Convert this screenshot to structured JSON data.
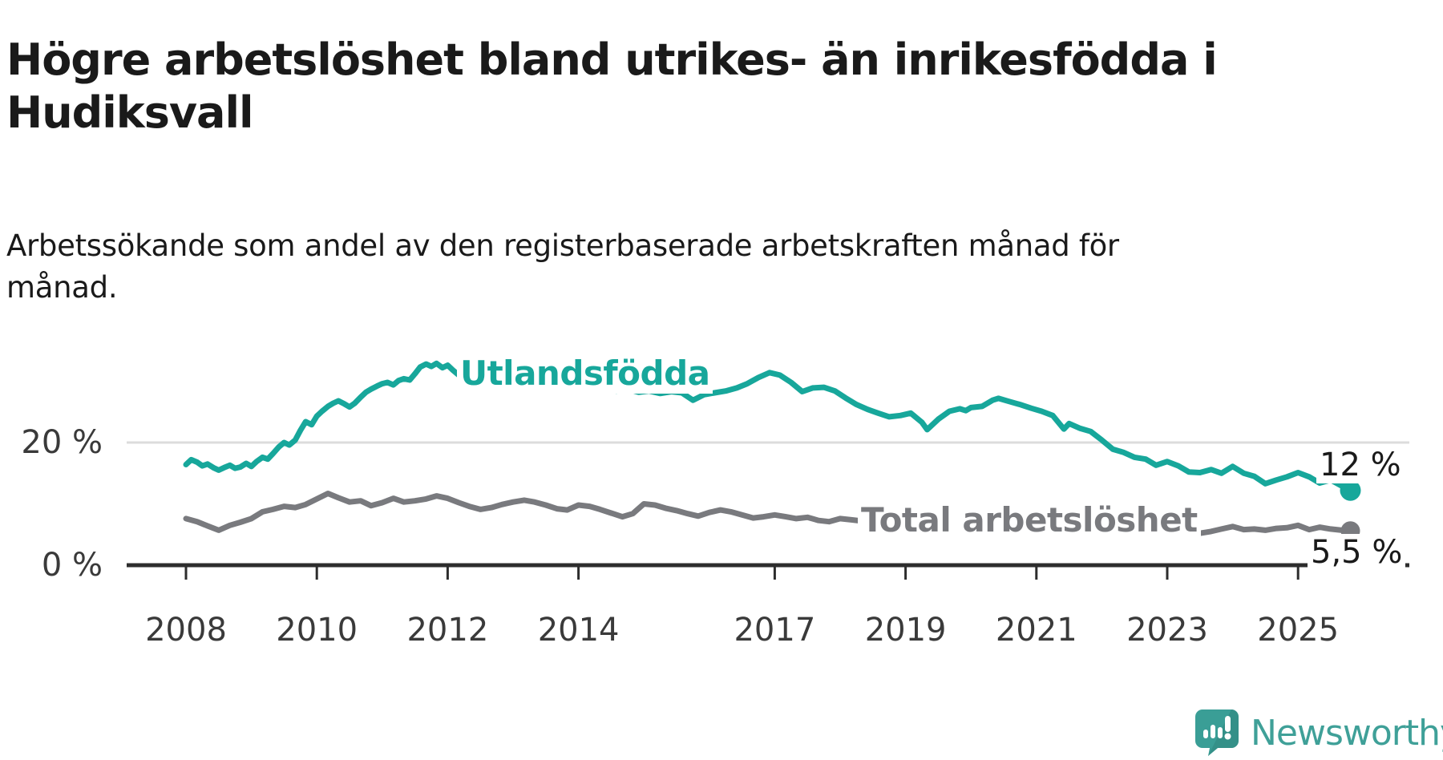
{
  "header": {
    "title": "Högre arbetslöshet bland utrikes- än inrikesfödda i\nHudiksvall",
    "subtitle": "Arbetssökande som andel av den registerbaserade arbetskraften månad för månad."
  },
  "footer": {
    "brand": "Newsworthy"
  },
  "colors": {
    "accent_teal": "#17a79b",
    "series_gray": "#797a7e",
    "gridline": "#dcdcdc",
    "axis": "#2d2d2d",
    "text": "#1a1a1a"
  },
  "chart_data": {
    "type": "line",
    "unit": "%",
    "grid": "single horizontal gridline at 20 %",
    "legend_position": "inline labels on lines",
    "x_axis": {
      "range": [
        2007.9,
        2026.7
      ],
      "ticks": [
        2008,
        2010,
        2012,
        2014,
        2017,
        2019,
        2021,
        2023,
        2025
      ],
      "tick_labels": [
        "2008",
        "2010",
        "2012",
        "2014",
        "2017",
        "2019",
        "2021",
        "2023",
        "2025"
      ]
    },
    "y_axis": {
      "range": [
        0,
        42
      ],
      "ticks": [
        0,
        20
      ],
      "tick_labels": [
        "0 %",
        "20 %"
      ]
    },
    "series": [
      {
        "name": "Utlandsfödda",
        "color": "#17a79b",
        "end_label": "12 %",
        "end_value": 12,
        "points": [
          [
            2008.0,
            16.4
          ],
          [
            2008.08,
            17.2
          ],
          [
            2008.17,
            16.8
          ],
          [
            2008.25,
            16.2
          ],
          [
            2008.33,
            16.5
          ],
          [
            2008.42,
            15.9
          ],
          [
            2008.5,
            15.5
          ],
          [
            2008.58,
            15.9
          ],
          [
            2008.67,
            16.3
          ],
          [
            2008.75,
            15.8
          ],
          [
            2008.83,
            16.0
          ],
          [
            2008.92,
            16.6
          ],
          [
            2009.0,
            16.1
          ],
          [
            2009.08,
            16.9
          ],
          [
            2009.17,
            17.6
          ],
          [
            2009.25,
            17.3
          ],
          [
            2009.33,
            18.2
          ],
          [
            2009.42,
            19.3
          ],
          [
            2009.5,
            20.0
          ],
          [
            2009.58,
            19.6
          ],
          [
            2009.67,
            20.4
          ],
          [
            2009.75,
            22.0
          ],
          [
            2009.83,
            23.4
          ],
          [
            2009.92,
            22.9
          ],
          [
            2010.0,
            24.3
          ],
          [
            2010.08,
            25.1
          ],
          [
            2010.17,
            25.9
          ],
          [
            2010.25,
            26.4
          ],
          [
            2010.33,
            26.8
          ],
          [
            2010.42,
            26.3
          ],
          [
            2010.5,
            25.8
          ],
          [
            2010.58,
            26.4
          ],
          [
            2010.67,
            27.4
          ],
          [
            2010.75,
            28.2
          ],
          [
            2010.83,
            28.7
          ],
          [
            2010.92,
            29.2
          ],
          [
            2011.0,
            29.6
          ],
          [
            2011.08,
            29.8
          ],
          [
            2011.17,
            29.4
          ],
          [
            2011.25,
            30.1
          ],
          [
            2011.33,
            30.4
          ],
          [
            2011.42,
            30.2
          ],
          [
            2011.5,
            31.2
          ],
          [
            2011.58,
            32.3
          ],
          [
            2011.67,
            32.8
          ],
          [
            2011.75,
            32.4
          ],
          [
            2011.83,
            32.9
          ],
          [
            2011.92,
            32.2
          ],
          [
            2012.0,
            32.6
          ],
          [
            2012.08,
            31.8
          ],
          [
            2012.17,
            31.0
          ],
          [
            2012.25,
            30.6
          ],
          [
            2012.42,
            31.1
          ],
          [
            2012.58,
            30.6
          ],
          [
            2012.75,
            30.9
          ],
          [
            2012.92,
            30.3
          ],
          [
            2013.08,
            30.6
          ],
          [
            2013.25,
            30.0
          ],
          [
            2013.42,
            29.6
          ],
          [
            2013.58,
            29.9
          ],
          [
            2013.75,
            29.3
          ],
          [
            2013.92,
            29.5
          ],
          [
            2014.08,
            28.9
          ],
          [
            2014.25,
            29.1
          ],
          [
            2014.42,
            28.6
          ],
          [
            2014.58,
            28.4
          ],
          [
            2014.75,
            28.7
          ],
          [
            2014.92,
            28.2
          ],
          [
            2015.08,
            28.4
          ],
          [
            2015.25,
            28.0
          ],
          [
            2015.42,
            28.3
          ],
          [
            2015.58,
            28.1
          ],
          [
            2015.75,
            26.9
          ],
          [
            2015.92,
            27.8
          ],
          [
            2016.08,
            28.1
          ],
          [
            2016.25,
            28.4
          ],
          [
            2016.42,
            28.9
          ],
          [
            2016.58,
            29.6
          ],
          [
            2016.75,
            30.6
          ],
          [
            2016.92,
            31.4
          ],
          [
            2017.08,
            31.0
          ],
          [
            2017.25,
            29.8
          ],
          [
            2017.42,
            28.3
          ],
          [
            2017.58,
            28.9
          ],
          [
            2017.75,
            29.0
          ],
          [
            2017.92,
            28.4
          ],
          [
            2018.08,
            27.3
          ],
          [
            2018.25,
            26.2
          ],
          [
            2018.42,
            25.4
          ],
          [
            2018.58,
            24.8
          ],
          [
            2018.75,
            24.2
          ],
          [
            2018.92,
            24.4
          ],
          [
            2019.08,
            24.8
          ],
          [
            2019.25,
            23.3
          ],
          [
            2019.33,
            22.1
          ],
          [
            2019.5,
            23.8
          ],
          [
            2019.67,
            25.1
          ],
          [
            2019.83,
            25.5
          ],
          [
            2019.92,
            25.2
          ],
          [
            2020.0,
            25.7
          ],
          [
            2020.17,
            25.9
          ],
          [
            2020.33,
            26.9
          ],
          [
            2020.42,
            27.2
          ],
          [
            2020.58,
            26.7
          ],
          [
            2020.75,
            26.2
          ],
          [
            2020.92,
            25.6
          ],
          [
            2021.08,
            25.1
          ],
          [
            2021.25,
            24.4
          ],
          [
            2021.42,
            22.2
          ],
          [
            2021.5,
            23.1
          ],
          [
            2021.67,
            22.3
          ],
          [
            2021.83,
            21.8
          ],
          [
            2022.0,
            20.4
          ],
          [
            2022.17,
            18.9
          ],
          [
            2022.33,
            18.4
          ],
          [
            2022.5,
            17.6
          ],
          [
            2022.67,
            17.3
          ],
          [
            2022.83,
            16.3
          ],
          [
            2023.0,
            16.9
          ],
          [
            2023.17,
            16.2
          ],
          [
            2023.33,
            15.2
          ],
          [
            2023.5,
            15.1
          ],
          [
            2023.67,
            15.6
          ],
          [
            2023.83,
            15.0
          ],
          [
            2024.0,
            16.1
          ],
          [
            2024.17,
            15.0
          ],
          [
            2024.33,
            14.5
          ],
          [
            2024.5,
            13.3
          ],
          [
            2024.67,
            13.9
          ],
          [
            2024.83,
            14.4
          ],
          [
            2025.0,
            15.1
          ],
          [
            2025.17,
            14.4
          ],
          [
            2025.33,
            13.4
          ],
          [
            2025.5,
            13.9
          ],
          [
            2025.67,
            12.9
          ],
          [
            2025.8,
            12.2
          ]
        ]
      },
      {
        "name": "Total arbetslöshet",
        "color": "#797a7e",
        "end_label": "5,5 %",
        "end_value": 5.5,
        "points": [
          [
            2008.0,
            7.6
          ],
          [
            2008.17,
            7.1
          ],
          [
            2008.33,
            6.4
          ],
          [
            2008.5,
            5.7
          ],
          [
            2008.67,
            6.5
          ],
          [
            2008.83,
            7.0
          ],
          [
            2009.0,
            7.6
          ],
          [
            2009.17,
            8.7
          ],
          [
            2009.33,
            9.1
          ],
          [
            2009.5,
            9.6
          ],
          [
            2009.67,
            9.4
          ],
          [
            2009.83,
            9.9
          ],
          [
            2010.0,
            10.8
          ],
          [
            2010.17,
            11.7
          ],
          [
            2010.33,
            11.0
          ],
          [
            2010.5,
            10.3
          ],
          [
            2010.67,
            10.5
          ],
          [
            2010.83,
            9.7
          ],
          [
            2011.0,
            10.2
          ],
          [
            2011.17,
            10.9
          ],
          [
            2011.33,
            10.3
          ],
          [
            2011.5,
            10.5
          ],
          [
            2011.67,
            10.8
          ],
          [
            2011.83,
            11.3
          ],
          [
            2012.0,
            10.9
          ],
          [
            2012.17,
            10.2
          ],
          [
            2012.33,
            9.6
          ],
          [
            2012.5,
            9.1
          ],
          [
            2012.67,
            9.4
          ],
          [
            2012.83,
            9.9
          ],
          [
            2013.0,
            10.3
          ],
          [
            2013.17,
            10.6
          ],
          [
            2013.33,
            10.3
          ],
          [
            2013.5,
            9.8
          ],
          [
            2013.67,
            9.2
          ],
          [
            2013.83,
            9.0
          ],
          [
            2014.0,
            9.8
          ],
          [
            2014.17,
            9.6
          ],
          [
            2014.33,
            9.1
          ],
          [
            2014.5,
            8.5
          ],
          [
            2014.67,
            7.9
          ],
          [
            2014.83,
            8.4
          ],
          [
            2015.0,
            10.0
          ],
          [
            2015.17,
            9.8
          ],
          [
            2015.33,
            9.3
          ],
          [
            2015.5,
            8.9
          ],
          [
            2015.67,
            8.4
          ],
          [
            2015.83,
            8.0
          ],
          [
            2016.0,
            8.6
          ],
          [
            2016.17,
            9.0
          ],
          [
            2016.33,
            8.7
          ],
          [
            2016.5,
            8.2
          ],
          [
            2016.67,
            7.7
          ],
          [
            2016.83,
            7.9
          ],
          [
            2017.0,
            8.2
          ],
          [
            2017.17,
            7.9
          ],
          [
            2017.33,
            7.6
          ],
          [
            2017.5,
            7.8
          ],
          [
            2017.67,
            7.3
          ],
          [
            2017.83,
            7.1
          ],
          [
            2018.0,
            7.6
          ],
          [
            2018.17,
            7.4
          ],
          [
            2018.33,
            7.2
          ],
          [
            2018.58,
            7.0
          ],
          [
            2018.83,
            6.9
          ],
          [
            2019.08,
            7.2
          ],
          [
            2019.33,
            6.9
          ],
          [
            2019.58,
            7.1
          ],
          [
            2019.83,
            7.4
          ],
          [
            2020.08,
            7.9
          ],
          [
            2020.33,
            8.3
          ],
          [
            2020.58,
            8.1
          ],
          [
            2020.83,
            7.8
          ],
          [
            2021.08,
            7.5
          ],
          [
            2021.33,
            7.2
          ],
          [
            2021.58,
            6.9
          ],
          [
            2021.83,
            6.7
          ],
          [
            2022.08,
            6.6
          ],
          [
            2022.33,
            6.5
          ],
          [
            2022.5,
            6.2
          ],
          [
            2022.67,
            6.3
          ],
          [
            2022.83,
            5.9
          ],
          [
            2023.0,
            6.1
          ],
          [
            2023.17,
            6.3
          ],
          [
            2023.33,
            5.6
          ],
          [
            2023.5,
            5.2
          ],
          [
            2023.67,
            5.5
          ],
          [
            2023.83,
            5.9
          ],
          [
            2024.0,
            6.3
          ],
          [
            2024.17,
            5.8
          ],
          [
            2024.33,
            5.9
          ],
          [
            2024.5,
            5.7
          ],
          [
            2024.67,
            6.0
          ],
          [
            2024.83,
            6.1
          ],
          [
            2025.0,
            6.5
          ],
          [
            2025.17,
            5.8
          ],
          [
            2025.33,
            6.2
          ],
          [
            2025.5,
            5.9
          ],
          [
            2025.67,
            5.7
          ],
          [
            2025.8,
            5.6
          ]
        ]
      }
    ]
  }
}
